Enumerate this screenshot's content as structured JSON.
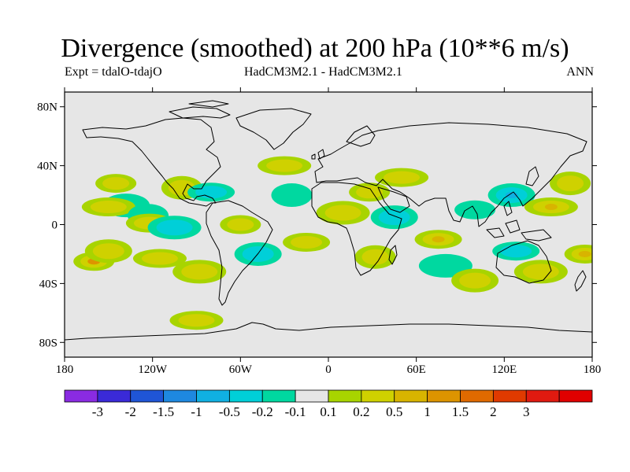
{
  "title": "Divergence (smoothed) at 200 hPa (10**6 m/s)",
  "subtitle_left": "Expt = tdalO-tdajO",
  "subtitle_center": "HadCM3M2.1 - HadCM3M2.1",
  "subtitle_right": "ANN",
  "map": {
    "background_color": "#e6e6e6",
    "lon_range": [
      -180,
      180
    ],
    "lat_range": [
      -90,
      90
    ],
    "lat_ticks": [
      {
        "value": 80,
        "label": "80N"
      },
      {
        "value": 40,
        "label": "40N"
      },
      {
        "value": 0,
        "label": "0"
      },
      {
        "value": -40,
        "label": "40S"
      },
      {
        "value": -80,
        "label": "80S"
      }
    ],
    "lon_ticks": [
      {
        "value": -180,
        "label": "180"
      },
      {
        "value": -120,
        "label": "120W"
      },
      {
        "value": -60,
        "label": "60W"
      },
      {
        "value": 0,
        "label": "0"
      },
      {
        "value": 60,
        "label": "60E"
      },
      {
        "value": 120,
        "label": "120E"
      },
      {
        "value": 180,
        "label": "180"
      }
    ]
  },
  "colorbar": {
    "colors": [
      "#8a2be2",
      "#3a2ad8",
      "#1f55d6",
      "#1e88e0",
      "#10b0e2",
      "#00cfd8",
      "#00d8a0",
      "#e6e6e6",
      "#a8d400",
      "#cfd100",
      "#d8b400",
      "#dd9400",
      "#e06a00",
      "#e03a00",
      "#e01a10",
      "#e00000"
    ],
    "labels": [
      "-3",
      "-2",
      "-1.5",
      "-1",
      "-0.5",
      "-0.2",
      "-0.1",
      "0.1",
      "0.2",
      "0.5",
      "1",
      "1.5",
      "2",
      "3"
    ]
  },
  "chart_data": {
    "type": "contour-map",
    "title": "Divergence (smoothed) at 200 hPa (10**6 m/s)",
    "variable": "divergence difference",
    "units": "10**6 m/s",
    "levels": [
      -3,
      -2,
      -1.5,
      -1,
      -0.5,
      -0.2,
      -0.1,
      0.1,
      0.2,
      0.5,
      1,
      1.5,
      2,
      3
    ],
    "features": [
      {
        "lon": -145,
        "lat": 28,
        "value": 0.35
      },
      {
        "lon": -138,
        "lat": 13,
        "value": -0.2
      },
      {
        "lon": -150,
        "lat": 12,
        "value": 0.2
      },
      {
        "lon": -123,
        "lat": 6,
        "value": -0.2
      },
      {
        "lon": -122,
        "lat": 1,
        "value": 0.2
      },
      {
        "lon": -105,
        "lat": -2,
        "value": -0.3
      },
      {
        "lon": -160,
        "lat": -25,
        "value": 1.0
      },
      {
        "lon": -150,
        "lat": -18,
        "value": 0.3
      },
      {
        "lon": -115,
        "lat": -23,
        "value": 0.3
      },
      {
        "lon": -100,
        "lat": 25,
        "value": 0.3
      },
      {
        "lon": -80,
        "lat": 22,
        "value": -0.4
      },
      {
        "lon": -88,
        "lat": -32,
        "value": 0.2
      },
      {
        "lon": -60,
        "lat": 0,
        "value": 0.2
      },
      {
        "lon": -48,
        "lat": -20,
        "value": -0.4
      },
      {
        "lon": -30,
        "lat": 40,
        "value": 0.2
      },
      {
        "lon": -25,
        "lat": 20,
        "value": -0.2
      },
      {
        "lon": -15,
        "lat": -12,
        "value": 0.2
      },
      {
        "lon": 10,
        "lat": 8,
        "value": 0.2
      },
      {
        "lon": 28,
        "lat": 22,
        "value": 0.2
      },
      {
        "lon": 45,
        "lat": 5,
        "value": -0.3
      },
      {
        "lon": 50,
        "lat": 32,
        "value": 0.2
      },
      {
        "lon": 32,
        "lat": -22,
        "value": 0.2
      },
      {
        "lon": 75,
        "lat": -10,
        "value": 0.5
      },
      {
        "lon": 80,
        "lat": -28,
        "value": -0.2
      },
      {
        "lon": 100,
        "lat": 10,
        "value": -0.2
      },
      {
        "lon": 125,
        "lat": 20,
        "value": -0.6
      },
      {
        "lon": 152,
        "lat": 12,
        "value": 0.8
      },
      {
        "lon": 165,
        "lat": 28,
        "value": 0.4
      },
      {
        "lon": 128,
        "lat": -18,
        "value": -0.3
      },
      {
        "lon": 145,
        "lat": -32,
        "value": 0.2
      },
      {
        "lon": 175,
        "lat": -20,
        "value": 0.6
      },
      {
        "lon": 100,
        "lat": -38,
        "value": 0.2
      },
      {
        "lon": -90,
        "lat": -65,
        "value": 0.2
      }
    ]
  }
}
